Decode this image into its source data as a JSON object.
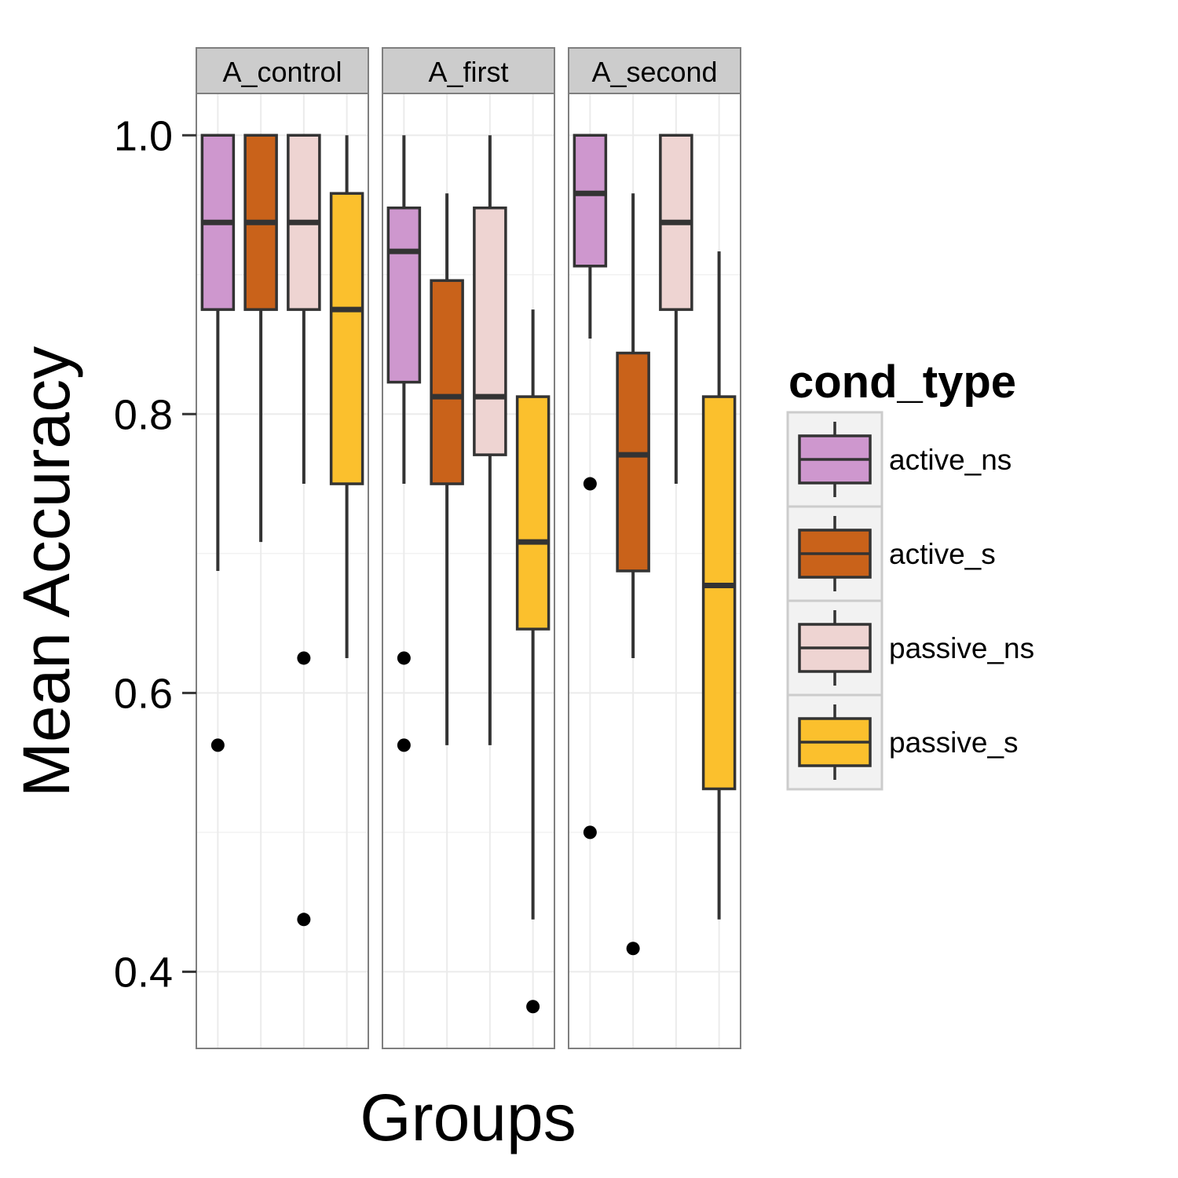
{
  "chart_data": {
    "type": "boxplot",
    "title": "",
    "xlabel": "Groups",
    "ylabel": "Mean Accuracy",
    "ylim": [
      0.345,
      1.03
    ],
    "y_ticks": [
      0.4,
      0.6,
      0.8,
      1.0
    ],
    "y_tick_labels": [
      "0.4",
      "0.6",
      "0.8",
      "1.0"
    ],
    "grid": true,
    "facets": [
      "A_control",
      "A_first",
      "A_second"
    ],
    "legend": {
      "title": "cond_type",
      "position": "right",
      "items": [
        "active_ns",
        "active_s",
        "passive_ns",
        "passive_s"
      ]
    },
    "series_colors": {
      "active_ns": "#CE97CE",
      "active_s": "#C9621A",
      "passive_ns": "#EED4D2",
      "passive_s": "#FBC02D"
    },
    "boxes": {
      "A_control": [
        {
          "cond_type": "active_ns",
          "whisker_low": 0.6875,
          "q1": 0.875,
          "median": 0.9375,
          "q3": 1.0,
          "whisker_high": 1.0,
          "outliers": [
            0.5625
          ]
        },
        {
          "cond_type": "active_s",
          "whisker_low": 0.7083,
          "q1": 0.875,
          "median": 0.9375,
          "q3": 1.0,
          "whisker_high": 1.0,
          "outliers": []
        },
        {
          "cond_type": "passive_ns",
          "whisker_low": 0.75,
          "q1": 0.875,
          "median": 0.9375,
          "q3": 1.0,
          "whisker_high": 1.0,
          "outliers": [
            0.625,
            0.4375
          ]
        },
        {
          "cond_type": "passive_s",
          "whisker_low": 0.625,
          "q1": 0.75,
          "median": 0.875,
          "q3": 0.9583,
          "whisker_high": 1.0,
          "outliers": []
        }
      ],
      "A_first": [
        {
          "cond_type": "active_ns",
          "whisker_low": 0.75,
          "q1": 0.8229,
          "median": 0.9167,
          "q3": 0.9479,
          "whisker_high": 1.0,
          "outliers": [
            0.625,
            0.5625
          ]
        },
        {
          "cond_type": "active_s",
          "whisker_low": 0.5625,
          "q1": 0.75,
          "median": 0.8125,
          "q3": 0.8958,
          "whisker_high": 0.9583,
          "outliers": []
        },
        {
          "cond_type": "passive_ns",
          "whisker_low": 0.5625,
          "q1": 0.7708,
          "median": 0.8125,
          "q3": 0.9479,
          "whisker_high": 1.0,
          "outliers": []
        },
        {
          "cond_type": "passive_s",
          "whisker_low": 0.4375,
          "q1": 0.6458,
          "median": 0.7083,
          "q3": 0.8125,
          "whisker_high": 0.875,
          "outliers": [
            0.375
          ]
        }
      ],
      "A_second": [
        {
          "cond_type": "active_ns",
          "whisker_low": 0.8542,
          "q1": 0.9062,
          "median": 0.9583,
          "q3": 1.0,
          "whisker_high": 1.0,
          "outliers": [
            0.75,
            0.5
          ]
        },
        {
          "cond_type": "active_s",
          "whisker_low": 0.625,
          "q1": 0.6875,
          "median": 0.7708,
          "q3": 0.8438,
          "whisker_high": 0.9583,
          "outliers": [
            0.4167
          ]
        },
        {
          "cond_type": "passive_ns",
          "whisker_low": 0.75,
          "q1": 0.875,
          "median": 0.9375,
          "q3": 1.0,
          "whisker_high": 1.0,
          "outliers": []
        },
        {
          "cond_type": "passive_s",
          "whisker_low": 0.4375,
          "q1": 0.5312,
          "median": 0.6771,
          "q3": 0.8125,
          "whisker_high": 0.9167,
          "outliers": []
        }
      ]
    }
  }
}
